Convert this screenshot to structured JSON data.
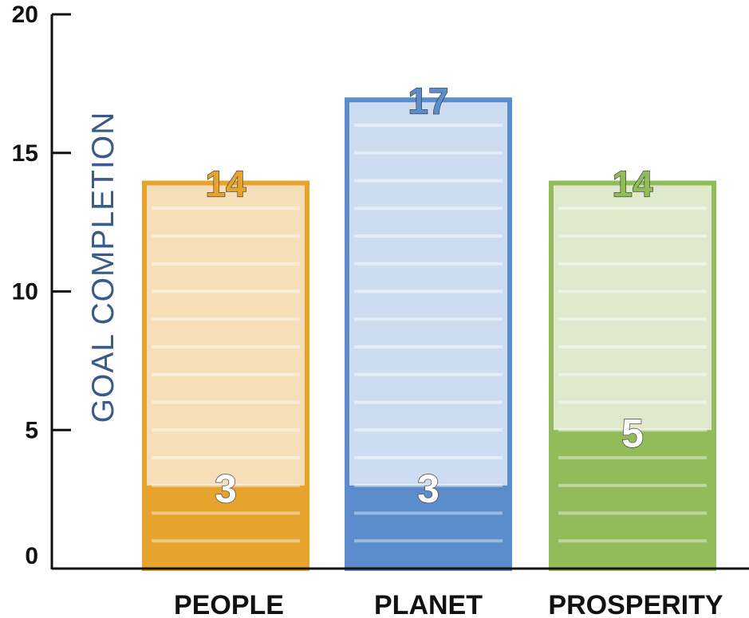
{
  "chart_data": {
    "type": "bar",
    "ylabel": "GOAL COMPLETION",
    "ylim": [
      0,
      20
    ],
    "yticks": [
      0,
      5,
      10,
      15,
      20
    ],
    "ytick_labels": [
      "0",
      "5",
      "10",
      "15",
      "20"
    ],
    "grid": false,
    "legend": "none",
    "categories": [
      "PEOPLE",
      "PLANET",
      "PROSPERITY"
    ],
    "series": [
      {
        "values": [
          3,
          3,
          5
        ]
      },
      {
        "values": [
          14,
          17,
          14
        ]
      }
    ],
    "totals": [
      14,
      17,
      14
    ],
    "totals_labels": [
      "14",
      "17",
      "14"
    ],
    "base_values": [
      3,
      3,
      5
    ],
    "base_labels": [
      "3",
      "3",
      "5"
    ]
  },
  "colors": {
    "axis": "#111111",
    "ylabel": "#3a5a8c",
    "stripe": "#ffffff",
    "bars": [
      {
        "solid": "#e6a32e",
        "light": "#f6dfb8",
        "text": "#e6a32e"
      },
      {
        "solid": "#5b8ccb",
        "light": "#cddcf0",
        "text": "#5b8ccb"
      },
      {
        "solid": "#92bb5a",
        "light": "#dfe9cc",
        "text": "#92bb5a"
      }
    ]
  }
}
